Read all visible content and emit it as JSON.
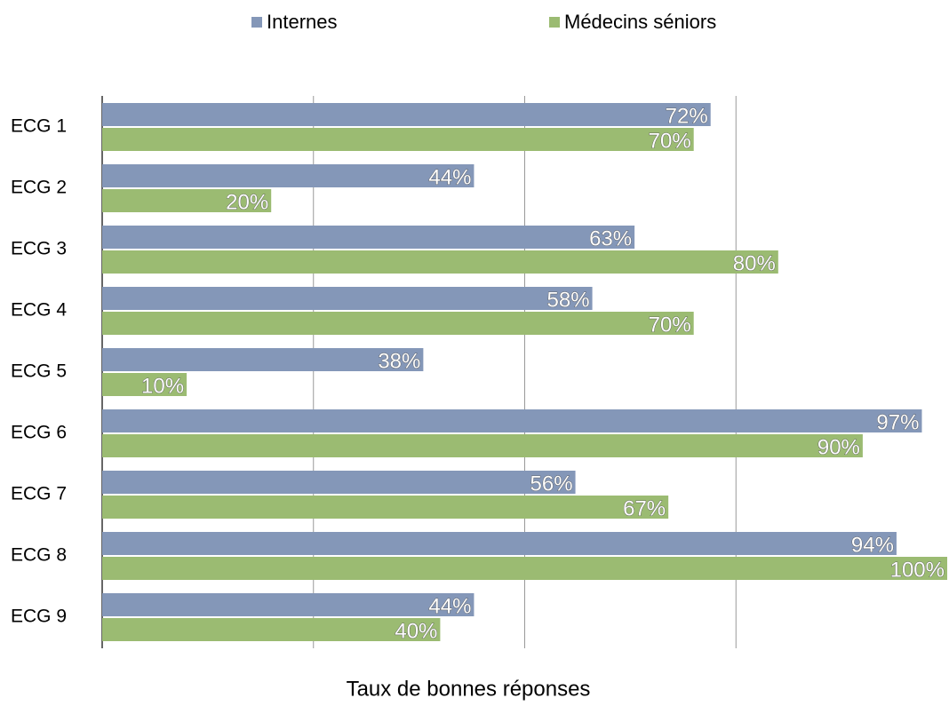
{
  "chart_data": {
    "type": "hbar",
    "xlabel": "Taux de bonnes réponses",
    "categories": [
      "ECG 1",
      "ECG 2",
      "ECG 3",
      "ECG 4",
      "ECG 5",
      "ECG 6",
      "ECG 7",
      "ECG 8",
      "ECG 9"
    ],
    "series": [
      {
        "name": "Internes",
        "color": "#8497b8",
        "values": [
          72,
          44,
          63,
          58,
          38,
          97,
          56,
          94,
          44
        ],
        "value_labels": [
          "72%",
          "44%",
          "63%",
          "58%",
          "38%",
          "97%",
          "56%",
          "94%",
          "44%"
        ]
      },
      {
        "name": "Médecins séniors",
        "color": "#9bbb72",
        "values": [
          70,
          20,
          80,
          70,
          10,
          90,
          67,
          100,
          40
        ],
        "value_labels": [
          "70%",
          "20%",
          "80%",
          "70%",
          "10%",
          "90%",
          "67%",
          "100%",
          "40%"
        ]
      }
    ],
    "xlim": [
      0,
      100
    ],
    "xticks": [
      25,
      50,
      75
    ],
    "grid": true,
    "legend": "top"
  }
}
